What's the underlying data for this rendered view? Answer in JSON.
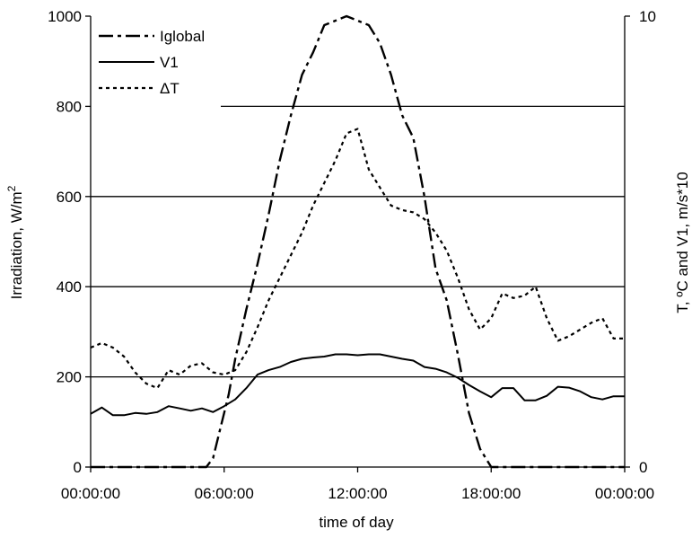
{
  "chart_data": {
    "type": "line",
    "xlabel": "time of day",
    "ylabel_left": "Irradiation, W/m",
    "ylabel_left_superscript": "2",
    "ylabel_right": "T, ºC and V1, m/s*10",
    "x_ticks": [
      "00:00:00",
      "06:00:00",
      "12:00:00",
      "18:00:00",
      "00:00:00"
    ],
    "x_range_hours": [
      0,
      24
    ],
    "y_left_ticks": [
      "0",
      "200",
      "400",
      "600",
      "800",
      "1000"
    ],
    "y_left_range": [
      0,
      1000
    ],
    "y_right_ticks": [
      "0",
      "10"
    ],
    "y_right_range": [
      0,
      10
    ],
    "gridlines": [
      200,
      400,
      600,
      800
    ],
    "legend_placement": "top-left",
    "series": [
      {
        "name": "Iglobal",
        "style": "dash-dot",
        "axis": "left",
        "x": [
          0,
          1,
          2,
          3,
          4,
          5.2,
          5.5,
          5.8,
          6.2,
          6.5,
          7,
          7.5,
          8,
          8.5,
          9,
          9.5,
          10,
          10.5,
          11,
          11.5,
          12,
          12.5,
          13,
          13.5,
          14,
          14.5,
          15,
          15.5,
          16,
          16.5,
          17,
          17.5,
          18,
          19,
          20,
          21,
          22,
          23,
          24
        ],
        "values": [
          0,
          0,
          0,
          0,
          0,
          0,
          20,
          80,
          160,
          240,
          350,
          450,
          560,
          680,
          780,
          870,
          920,
          980,
          990,
          1000,
          990,
          980,
          940,
          870,
          780,
          730,
          600,
          440,
          370,
          250,
          120,
          40,
          0,
          0,
          0,
          0,
          0,
          0,
          0
        ]
      },
      {
        "name": "V1",
        "style": "solid",
        "axis": "left",
        "x": [
          0,
          0.5,
          1,
          1.5,
          2,
          2.5,
          3,
          3.5,
          4,
          4.5,
          5,
          5.5,
          6,
          6.5,
          7,
          7.5,
          8,
          8.5,
          9,
          9.5,
          10,
          10.5,
          11,
          11.5,
          12,
          12.5,
          13,
          13.5,
          14,
          14.5,
          15,
          15.5,
          16,
          16.5,
          17,
          17.5,
          18,
          18.5,
          19,
          19.5,
          20,
          20.5,
          21,
          21.5,
          22,
          22.5,
          23,
          23.5,
          24
        ],
        "values": [
          118,
          132,
          115,
          115,
          120,
          118,
          122,
          135,
          130,
          125,
          130,
          122,
          135,
          150,
          175,
          205,
          215,
          222,
          233,
          240,
          243,
          245,
          250,
          250,
          248,
          250,
          250,
          245,
          240,
          236,
          222,
          218,
          210,
          198,
          182,
          168,
          155,
          175,
          175,
          148,
          148,
          158,
          178,
          176,
          168,
          155,
          150,
          157,
          157
        ]
      },
      {
        "name": "ΔT",
        "style": "dotted",
        "axis": "right",
        "x": [
          0,
          0.5,
          1,
          1.5,
          2,
          2.5,
          3,
          3.5,
          4,
          4.5,
          5,
          5.5,
          6,
          6.5,
          7,
          7.5,
          8,
          8.5,
          9,
          9.5,
          10,
          10.5,
          11,
          11.5,
          12,
          12.5,
          13,
          13.5,
          14,
          14.5,
          15,
          15.5,
          16,
          16.5,
          17,
          17.5,
          18,
          18.5,
          19,
          19.5,
          20,
          20.5,
          21,
          21.5,
          22,
          22.5,
          23,
          23.5,
          24
        ],
        "values": [
          2.65,
          2.75,
          2.65,
          2.45,
          2.1,
          1.85,
          1.75,
          2.15,
          2.05,
          2.25,
          2.3,
          2.1,
          2.05,
          2.15,
          2.55,
          3.1,
          3.7,
          4.2,
          4.7,
          5.2,
          5.8,
          6.3,
          6.8,
          7.4,
          7.5,
          6.6,
          6.2,
          5.8,
          5.7,
          5.65,
          5.5,
          5.2,
          4.8,
          4.2,
          3.5,
          3.05,
          3.3,
          3.85,
          3.75,
          3.8,
          4.0,
          3.3,
          2.8,
          2.9,
          3.05,
          3.2,
          3.3,
          2.85,
          2.85
        ]
      }
    ]
  }
}
